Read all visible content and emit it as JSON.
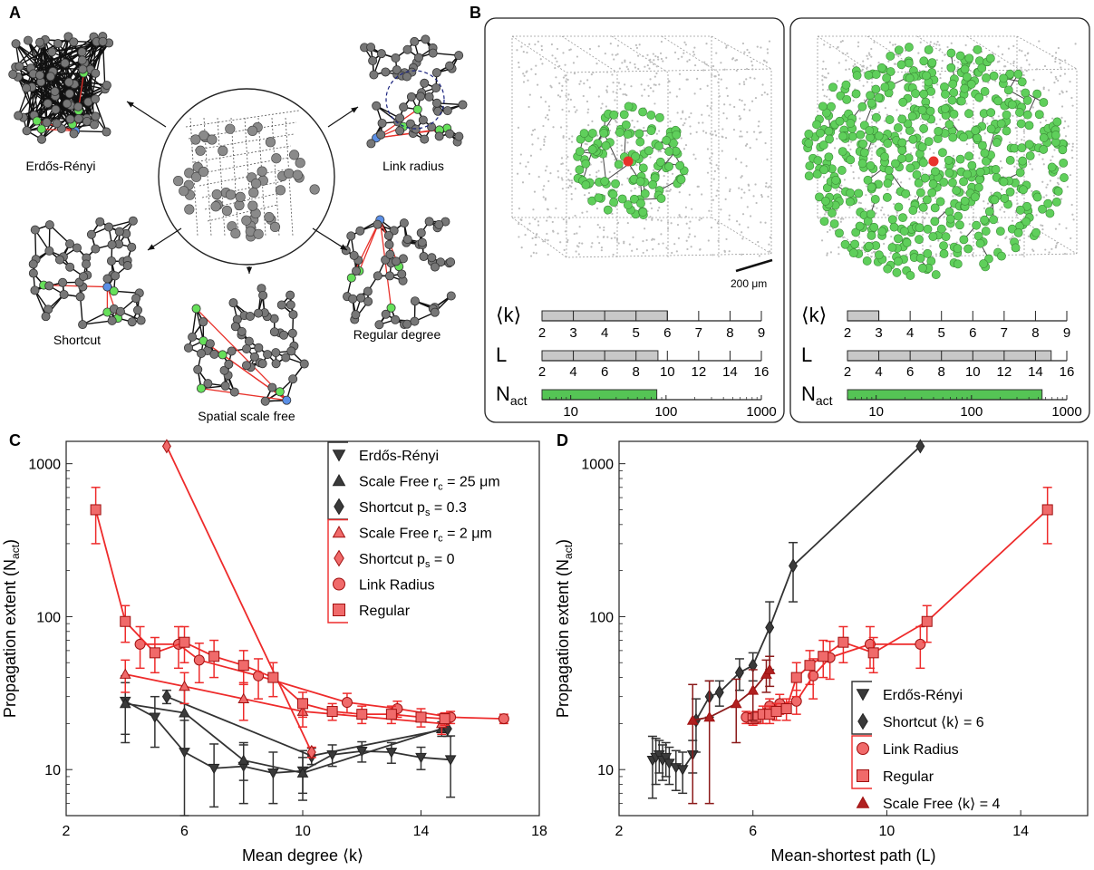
{
  "panel_labels": {
    "a": "A",
    "b": "B",
    "c": "C",
    "d": "D"
  },
  "panel_a": {
    "labels": [
      "Erdős-Rényi",
      "Link radius",
      "Shortcut",
      "Spatial scale free",
      "Regular degree"
    ]
  },
  "panel_b": {
    "scale_bar": "200 μm",
    "row_labels": {
      "k": "⟨k⟩",
      "l": "L",
      "nact": "N",
      "nact_sub": "act"
    },
    "k_ticks": [
      "2",
      "3",
      "4",
      "5",
      "6",
      "7",
      "8",
      "9"
    ],
    "l_ticks": [
      "2",
      "4",
      "6",
      "8",
      "10",
      "12",
      "14",
      "16"
    ],
    "n_ticks": [
      "10",
      "100",
      "1000"
    ],
    "left": {
      "k_value": 6.0,
      "l_value": 9.4,
      "nact_value": 80
    },
    "right": {
      "k_value": 3.0,
      "l_value": 15.0,
      "nact_value": 550
    },
    "colors": {
      "active": "#5fcf5b",
      "inactive": "#bdbdbd",
      "source": "#e8322b",
      "bar_gray": "#c8c8c8",
      "bar_green": "#55c455"
    }
  },
  "colors": {
    "black": "#333333",
    "red": "#ee2b2b",
    "red_fill": "#f06a6a",
    "dark_red": "#8b1a1a"
  },
  "chart_data": [
    {
      "type": "line",
      "xlabel": "Mean degree ⟨k⟩",
      "ylabel": "Propagation extent (N",
      "ylabel_sub": "act",
      "ylabel_end": ")",
      "xlim": [
        2,
        18
      ],
      "ylim": [
        5,
        1400
      ],
      "yscale": "log",
      "xticks": [
        "2",
        "6",
        "10",
        "14",
        "18"
      ],
      "yticks": [
        "10",
        "100",
        "1000"
      ],
      "legend": [
        {
          "label": "Erdős-Rényi",
          "marker": "tri_down",
          "color": "black"
        },
        {
          "label": "Scale Free r",
          "sub": "c",
          "tail": " = 25 μm",
          "marker": "tri_up",
          "color": "black"
        },
        {
          "label": "Shortcut p",
          "sub": "s",
          "tail": " = 0.3",
          "marker": "diamond",
          "color": "black"
        },
        {
          "label": "Scale Free r",
          "sub": "c",
          "tail": " = 2 μm",
          "marker": "tri_up",
          "color": "red"
        },
        {
          "label": "Shortcut p",
          "sub": "s",
          "tail": " = 0",
          "marker": "diamond",
          "color": "red"
        },
        {
          "label": "Link Radius",
          "marker": "circle",
          "color": "red"
        },
        {
          "label": "Regular",
          "marker": "square",
          "color": "red"
        }
      ],
      "series": [
        {
          "name": "Erdős-Rényi",
          "color": "black",
          "marker": "tri_down",
          "x": [
            4,
            5,
            6,
            7,
            8,
            9,
            10,
            11,
            12,
            13,
            14,
            15
          ],
          "y": [
            28,
            22,
            13,
            10.2,
            10.5,
            9.5,
            9.8,
            12.5,
            13.2,
            13,
            12,
            11.6
          ],
          "err": [
            13,
            8,
            8,
            4.5,
            4.5,
            3.5,
            3.5,
            2,
            2,
            2,
            2,
            5
          ]
        },
        {
          "name": "Scale Free rc = 25 μm",
          "color": "black",
          "marker": "tri_up",
          "x": [
            4,
            6,
            8,
            10,
            14.7
          ],
          "y": [
            27,
            23.5,
            11.5,
            9.5,
            18.5
          ],
          "err": [
            10,
            10,
            3,
            2.5,
            2
          ]
        },
        {
          "name": "Shortcut ps = 0.3",
          "color": "black",
          "marker": "diamond",
          "x": [
            5.4,
            10.3,
            14.9
          ],
          "y": [
            30,
            12.3,
            18.5
          ],
          "err": [
            3,
            1.5,
            2
          ]
        },
        {
          "name": "Scale Free rc = 2 μm",
          "color": "red",
          "marker": "tri_up",
          "x": [
            4,
            6,
            8,
            10,
            14.7
          ],
          "y": [
            42,
            35,
            29,
            24,
            20
          ],
          "err": [
            10,
            8,
            8,
            5,
            3
          ]
        },
        {
          "name": "Shortcut ps = 0",
          "color": "red",
          "marker": "diamond",
          "x": [
            5.4,
            10.3
          ],
          "y": [
            1300,
            13
          ],
          "err": [
            0,
            1
          ]
        },
        {
          "name": "Link Radius",
          "color": "red",
          "marker": "circle",
          "x": [
            4.5,
            5.8,
            6.5,
            8.5,
            11.5,
            13.2,
            15,
            16.8
          ],
          "y": [
            66,
            66,
            52,
            41,
            27.5,
            25,
            22,
            21.5
          ],
          "err": [
            20,
            20,
            15,
            12,
            4,
            3,
            2,
            1.5
          ]
        },
        {
          "name": "Regular",
          "color": "red",
          "marker": "square",
          "x": [
            3,
            4,
            5,
            6,
            7,
            8,
            9,
            10,
            11,
            12,
            13,
            14,
            14.8
          ],
          "y": [
            500,
            93,
            58,
            68,
            55,
            48,
            40,
            27,
            24,
            23,
            23,
            22,
            21.5
          ],
          "err": [
            200,
            25,
            15,
            18,
            15,
            12,
            10,
            5,
            3,
            3,
            3,
            3,
            2
          ]
        }
      ]
    },
    {
      "type": "line",
      "xlabel": "Mean-shortest path (L)",
      "ylabel": "Propagation extent (N",
      "ylabel_sub": "act",
      "ylabel_end": ")",
      "xlim": [
        2,
        16
      ],
      "ylim": [
        5,
        1400
      ],
      "yscale": "log",
      "xticks": [
        "2",
        "6",
        "10",
        "14"
      ],
      "yticks": [
        "10",
        "100",
        "1000"
      ],
      "legend": [
        {
          "label": "Erdős-Rényi",
          "marker": "tri_down",
          "color": "black"
        },
        {
          "label": "Shortcut ⟨k⟩ = 6",
          "marker": "diamond",
          "color": "black"
        },
        {
          "label": "Link Radius",
          "marker": "circle",
          "color": "red"
        },
        {
          "label": "Regular",
          "marker": "square",
          "color": "red"
        },
        {
          "label": "Scale Free ⟨k⟩ = 4",
          "marker": "tri_up",
          "color": "dark_red"
        }
      ],
      "series": [
        {
          "name": "Erdős-Rényi",
          "color": "black",
          "marker": "tri_down",
          "x": [
            3.0,
            3.1,
            3.2,
            3.3,
            3.4,
            3.5,
            3.7,
            3.9,
            4.2
          ],
          "y": [
            11.5,
            12,
            12.5,
            11.5,
            12,
            11,
            10.3,
            10,
            12.5
          ],
          "err": [
            5,
            4,
            3,
            3,
            3,
            3,
            3,
            3,
            3
          ]
        },
        {
          "name": "Shortcut ⟨k⟩ = 6",
          "color": "black",
          "marker": "diamond",
          "x": [
            4.3,
            4.7,
            5.0,
            5.6,
            6.0,
            6.5,
            7.2,
            11.0
          ],
          "y": [
            21,
            30,
            32,
            43,
            48,
            85,
            215,
            1300
          ],
          "err": [
            8,
            8,
            6,
            10,
            10,
            40,
            90,
            0
          ]
        },
        {
          "name": "Link Radius",
          "color": "red",
          "marker": "circle",
          "x": [
            5.8,
            6.5,
            6.8,
            7.3,
            7.8,
            8.3,
            9.5,
            11.0
          ],
          "y": [
            22,
            26,
            27,
            28,
            41,
            54,
            66,
            66
          ],
          "err": [
            2,
            3,
            4,
            5,
            12,
            15,
            20,
            20
          ]
        },
        {
          "name": "Regular",
          "color": "red",
          "marker": "square",
          "x": [
            6.0,
            6.1,
            6.3,
            6.5,
            6.7,
            7.0,
            7.3,
            7.7,
            8.1,
            8.7,
            9.6,
            11.2,
            14.8
          ],
          "y": [
            21.5,
            22,
            23,
            23,
            24,
            25,
            40,
            48,
            55,
            68,
            58,
            93,
            500
          ],
          "err": [
            2,
            2,
            3,
            3,
            3,
            4,
            10,
            12,
            15,
            18,
            15,
            25,
            200
          ]
        },
        {
          "name": "Scale Free ⟨k⟩ = 4",
          "color": "dark_red",
          "marker": "tri_up",
          "x": [
            4.2,
            4.7,
            5.5,
            6.0,
            6.4,
            6.5
          ],
          "y": [
            21,
            22,
            27,
            33,
            42,
            45
          ],
          "err": [
            15,
            16,
            12,
            12,
            10,
            10
          ]
        }
      ]
    }
  ]
}
